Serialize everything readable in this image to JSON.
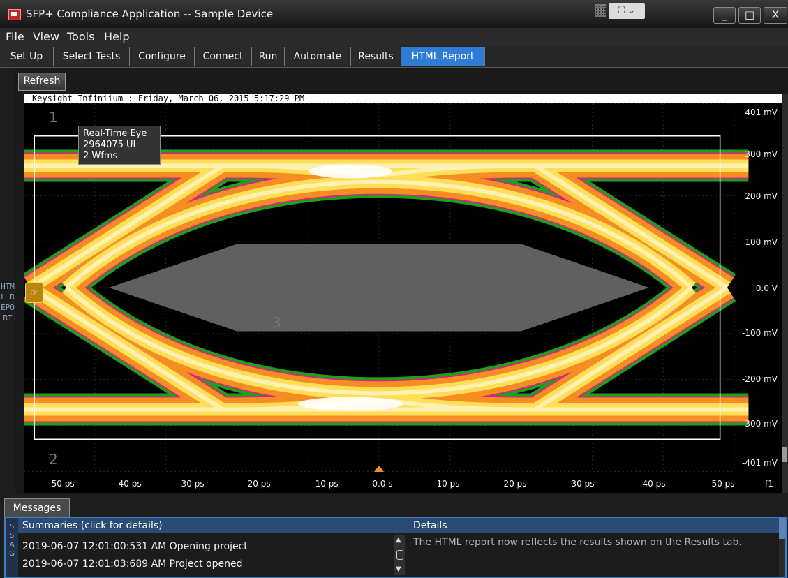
{
  "window": {
    "title": "SFP+ Compliance Application -- Sample Device",
    "minimize_label": "_",
    "maximize_label": "□",
    "close_label": "X"
  },
  "menu": [
    "File",
    "View",
    "Tools",
    "Help"
  ],
  "tabs": [
    "Set Up",
    "Select Tests",
    "Configure",
    "Connect",
    "Run",
    "Automate",
    "Results",
    "HTML Report"
  ],
  "active_tab": "HTML Report",
  "report": {
    "refresh_label": "Refresh",
    "side_label": "HTML REPORT",
    "header": "Keysight Infiniium : Friday, March 06, 2015 5:17:29 PM"
  },
  "chart_data": {
    "type": "heatmap",
    "title": "",
    "info_lines": [
      "Real-Time Eye",
      "2964075 UI",
      "2 Wfms"
    ],
    "y_tick_labels": [
      "401 mV",
      "300 mV",
      "200 mV",
      "100 mV",
      "0.0 V",
      "-100 mV",
      "-200 mV",
      "-300 mV",
      "-401 mV"
    ],
    "x_tick_labels": [
      "-50 ps",
      "-40 ps",
      "-30 ps",
      "-20 ps",
      "-10 ps",
      "0.0 s",
      "10 ps",
      "20 ps",
      "30 ps",
      "40 ps",
      "50 ps"
    ],
    "xlim_ps": [
      -50,
      50
    ],
    "ylim_mv": [
      -401,
      401
    ],
    "function_label": "f1",
    "marker_labels": [
      "1",
      "2",
      "3"
    ],
    "mask": {
      "label": "3",
      "points_ps_mv": [
        [
          -38,
          0
        ],
        [
          -20,
          95
        ],
        [
          20,
          95
        ],
        [
          38,
          0
        ],
        [
          20,
          -95
        ],
        [
          -20,
          -95
        ]
      ]
    },
    "box_mv": [
      -330,
      330
    ],
    "box_ps": [
      -48.5,
      48
    ],
    "levels_mv": {
      "high": 265,
      "low": -265,
      "crossing": 0
    },
    "crossings_ps": [
      -49,
      49
    ],
    "eye_inner_mv": [
      230,
      -230
    ],
    "colors": {
      "outer": "#1faa1f",
      "band": "#f7941d",
      "core": "#ffe45c",
      "hot": "#ffffff",
      "edge": "#e01e8c",
      "mask": "#606060",
      "box": "#ffffff"
    },
    "grid": true
  },
  "messages": {
    "tab_label": "Messages",
    "side_label": "SSAG",
    "summaries_header": "Summaries (click for details)",
    "details_header": "Details",
    "rows": [
      "2019-06-07 12:01:00:531 AM Opening project",
      "2019-06-07 12:01:03:689 AM Project opened"
    ],
    "details_text": "The HTML report now reflects the results shown on the Results tab."
  }
}
